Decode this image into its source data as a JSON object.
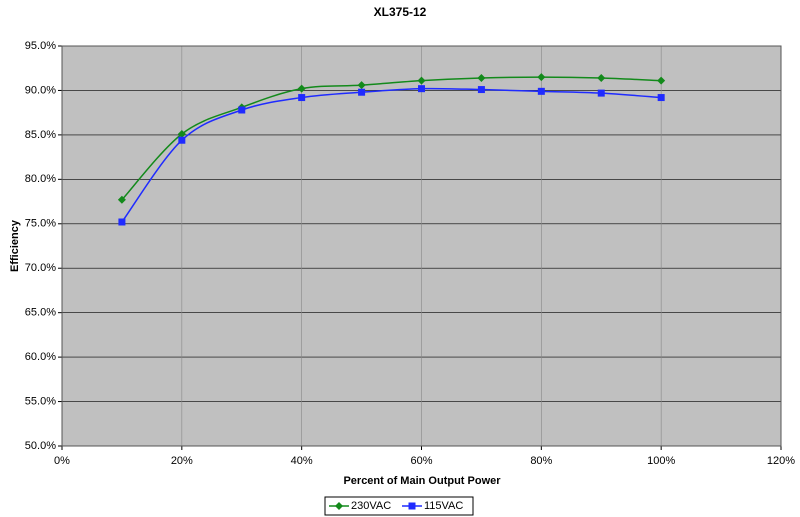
{
  "chart_data": {
    "type": "line",
    "title": "XL375-12",
    "x_label": "Percent of Main Output Power",
    "y_label": "Efficiency",
    "x": [
      10,
      20,
      30,
      40,
      50,
      60,
      70,
      80,
      90,
      100
    ],
    "series": [
      {
        "name": "230VAC",
        "color": "#138a1b",
        "marker": "diamond",
        "values": [
          77.7,
          85.1,
          88.1,
          90.2,
          90.6,
          91.1,
          91.4,
          91.5,
          91.4,
          91.1
        ]
      },
      {
        "name": "115VAC",
        "color": "#1f2bff",
        "marker": "square",
        "values": [
          75.2,
          84.4,
          87.8,
          89.2,
          89.8,
          90.2,
          90.1,
          89.9,
          89.7,
          89.2
        ]
      }
    ],
    "xlim": [
      0,
      120
    ],
    "xticks": [
      {
        "value": 0,
        "label": "0%"
      },
      {
        "value": 20,
        "label": "20%"
      },
      {
        "value": 40,
        "label": "40%"
      },
      {
        "value": 60,
        "label": "60%"
      },
      {
        "value": 80,
        "label": "80%"
      },
      {
        "value": 100,
        "label": "100%"
      },
      {
        "value": 120,
        "label": "120%"
      }
    ],
    "ylim": [
      50,
      95
    ],
    "yticks": [
      {
        "value": 50,
        "label": "50.0%"
      },
      {
        "value": 55,
        "label": "55.0%"
      },
      {
        "value": 60,
        "label": "60.0%"
      },
      {
        "value": 65,
        "label": "65.0%"
      },
      {
        "value": 70,
        "label": "70.0%"
      },
      {
        "value": 75,
        "label": "75.0%"
      },
      {
        "value": 80,
        "label": "80.0%"
      },
      {
        "value": 85,
        "label": "85.0%"
      },
      {
        "value": 90,
        "label": "90.0%"
      },
      {
        "value": 95,
        "label": "95.0%"
      }
    ],
    "grid": true,
    "smooth": true,
    "plot_background": "#c0c0c0",
    "legend": "bottom"
  }
}
